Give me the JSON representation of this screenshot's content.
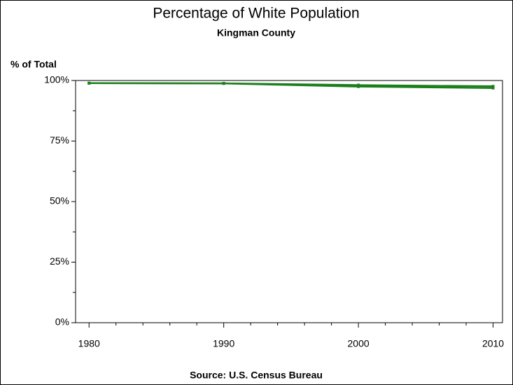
{
  "chart_data": {
    "type": "line",
    "title": "Percentage of White Population",
    "subtitle": "Kingman County",
    "y_label": "% of Total",
    "source": "Source: U.S. Census Bureau",
    "x": [
      1980,
      1990,
      2000,
      2010
    ],
    "series": [
      {
        "color": "#1a7f1a",
        "values": [
          98.9,
          98.8,
          98.1,
          97.6
        ]
      },
      {
        "color": "#1a7f1a",
        "values": [
          98.9,
          98.8,
          97.5,
          96.9
        ]
      }
    ],
    "xlim": [
      1979,
      2010.7
    ],
    "xticks": [
      1980,
      1990,
      2000,
      2010
    ],
    "xticks_minor": [
      1982,
      1984,
      1986,
      1988,
      1992,
      1994,
      1996,
      1998,
      2002,
      2004,
      2006,
      2008
    ],
    "ylim": [
      0,
      100
    ],
    "yticks": [
      {
        "value": 0,
        "label": "0%"
      },
      {
        "value": 25,
        "label": "25%"
      },
      {
        "value": 50,
        "label": "50%"
      },
      {
        "value": 75,
        "label": "75%"
      },
      {
        "value": 100,
        "label": "100%"
      }
    ],
    "yticks_minor": [
      12.5,
      37.5,
      62.5,
      87.5
    ]
  }
}
